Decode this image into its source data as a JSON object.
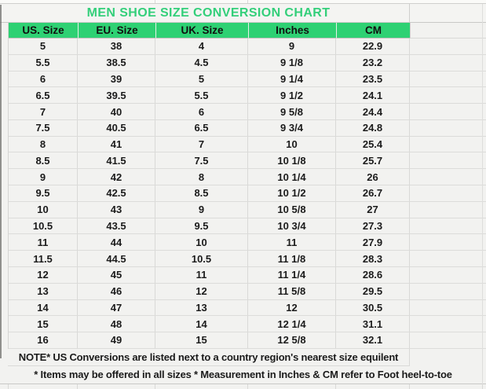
{
  "chart_data": {
    "type": "table",
    "title": "MEN SHOE SIZE CONVERSION CHART",
    "columns": [
      "US. Size",
      "EU. Size",
      "UK. Size",
      "Inches",
      "CM"
    ],
    "rows": [
      [
        "5",
        "38",
        "4",
        "9",
        "22.9"
      ],
      [
        "5.5",
        "38.5",
        "4.5",
        "9 1/8",
        "23.2"
      ],
      [
        "6",
        "39",
        "5",
        "9 1/4",
        "23.5"
      ],
      [
        "6.5",
        "39.5",
        "5.5",
        "9 1/2",
        "24.1"
      ],
      [
        "7",
        "40",
        "6",
        "9 5/8",
        "24.4"
      ],
      [
        "7.5",
        "40.5",
        "6.5",
        "9 3/4",
        "24.8"
      ],
      [
        "8",
        "41",
        "7",
        "10",
        "25.4"
      ],
      [
        "8.5",
        "41.5",
        "7.5",
        "10 1/8",
        "25.7"
      ],
      [
        "9",
        "42",
        "8",
        "10 1/4",
        "26"
      ],
      [
        "9.5",
        "42.5",
        "8.5",
        "10 1/2",
        "26.7"
      ],
      [
        "10",
        "43",
        "9",
        "10 5/8",
        "27"
      ],
      [
        "10.5",
        "43.5",
        "9.5",
        "10 3/4",
        "27.3"
      ],
      [
        "11",
        "44",
        "10",
        "11",
        "27.9"
      ],
      [
        "11.5",
        "44.5",
        "10.5",
        "11 1/8",
        "28.3"
      ],
      [
        "12",
        "45",
        "11",
        "11 1/4",
        "28.6"
      ],
      [
        "13",
        "46",
        "12",
        "11 5/8",
        "29.5"
      ],
      [
        "14",
        "47",
        "13",
        "12",
        "30.5"
      ],
      [
        "15",
        "48",
        "14",
        "12 1/4",
        "31.1"
      ],
      [
        "16",
        "49",
        "15",
        "12 5/8",
        "32.1"
      ]
    ],
    "notes": [
      "NOTE* US Conversions are listed next to a country region's nearest size equilent",
      "* Items may be offered in all sizes * Measurement in Inches & CM refer to Foot heel-to-toe"
    ],
    "colors": {
      "header_background": "#2ed173",
      "title_text": "#33cf7a",
      "body_text": "#1b1b1b",
      "background": "#f2f2f0",
      "gridline": "#d9d9d7"
    },
    "layout": {
      "grid": true,
      "title_position": "top-center",
      "notes_position": "bottom"
    }
  }
}
